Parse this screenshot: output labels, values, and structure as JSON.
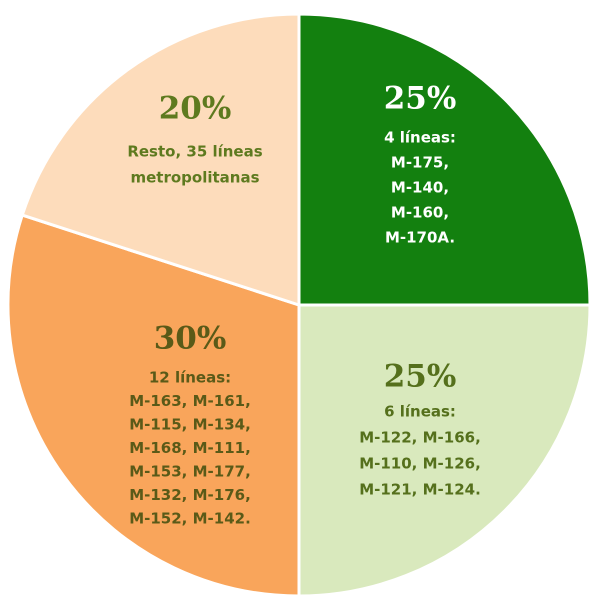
{
  "chart_data": {
    "type": "pie",
    "values": [
      25,
      25,
      30,
      20
    ],
    "value_labels": [
      "25%",
      "25%",
      "30%",
      "20%"
    ],
    "categories": [
      [
        "4 líneas:",
        "M-175,",
        "M-140,",
        "M-160,",
        "M-170A."
      ],
      [
        "6 líneas:",
        "M-122, M-166,",
        "M-110, M-126,",
        "M-121, M-124."
      ],
      [
        "12 líneas:",
        "M-163, M-161,",
        "M-115, M-134,",
        "M-168, M-111,",
        "M-153, M-177,",
        "M-132, M-176,",
        "M-152, M-142."
      ],
      [
        "Resto, 35 líneas",
        "metropolitanas"
      ]
    ],
    "colors": [
      "#13800f",
      "#d9e9bd",
      "#f9a55b",
      "#fddcbb"
    ],
    "text_colors": [
      "#ffffff",
      "#55701c",
      "#5a5a18",
      "#5e7a1f"
    ]
  }
}
